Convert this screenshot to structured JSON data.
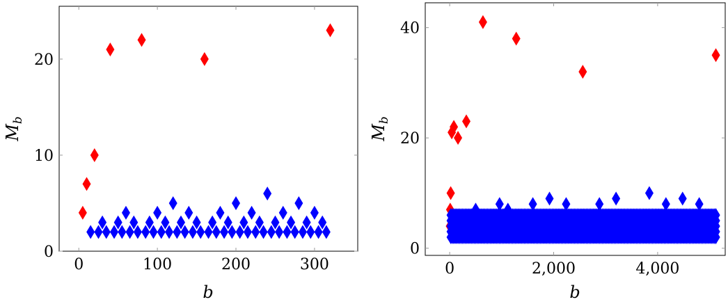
{
  "colors": {
    "highlight": "#ff0000",
    "regular": "#0000ff",
    "axis": "#000000",
    "tick": "#999999"
  },
  "chart_data": [
    {
      "type": "scatter",
      "title": "",
      "xlabel": "b",
      "ylabel": "M_b",
      "ylabel_main": "M",
      "ylabel_sub": "b",
      "xlim": [
        -25,
        355
      ],
      "ylim": [
        0,
        25.5
      ],
      "xticks": [
        0,
        100,
        200,
        300
      ],
      "xtick_labels": [
        "0",
        "100",
        "200",
        "300"
      ],
      "yticks": [
        0,
        10,
        20
      ],
      "ytick_labels": [
        "0",
        "10",
        "20"
      ],
      "grid": false,
      "marker": "diamond",
      "series": [
        {
          "color": "#ff0000",
          "points": [
            [
              5,
              4
            ],
            [
              10,
              7
            ],
            [
              20,
              10
            ],
            [
              40,
              21
            ],
            [
              80,
              22
            ],
            [
              160,
              20
            ],
            [
              320,
              23
            ]
          ]
        },
        {
          "color": "#0000ff",
          "points": [
            [
              15,
              2
            ],
            [
              25,
              2
            ],
            [
              30,
              3
            ],
            [
              35,
              2
            ],
            [
              45,
              2
            ],
            [
              50,
              3
            ],
            [
              55,
              2
            ],
            [
              60,
              4
            ],
            [
              65,
              2
            ],
            [
              70,
              3
            ],
            [
              75,
              2
            ],
            [
              85,
              2
            ],
            [
              90,
              3
            ],
            [
              95,
              2
            ],
            [
              100,
              4
            ],
            [
              105,
              2
            ],
            [
              110,
              3
            ],
            [
              115,
              2
            ],
            [
              120,
              5
            ],
            [
              125,
              2
            ],
            [
              130,
              3
            ],
            [
              135,
              2
            ],
            [
              140,
              4
            ],
            [
              145,
              2
            ],
            [
              150,
              3
            ],
            [
              155,
              2
            ],
            [
              165,
              2
            ],
            [
              170,
              3
            ],
            [
              175,
              2
            ],
            [
              180,
              4
            ],
            [
              185,
              2
            ],
            [
              190,
              3
            ],
            [
              195,
              2
            ],
            [
              200,
              5
            ],
            [
              205,
              2
            ],
            [
              210,
              3
            ],
            [
              215,
              2
            ],
            [
              220,
              4
            ],
            [
              225,
              2
            ],
            [
              230,
              3
            ],
            [
              235,
              2
            ],
            [
              240,
              6
            ],
            [
              245,
              2
            ],
            [
              250,
              3
            ],
            [
              255,
              2
            ],
            [
              260,
              4
            ],
            [
              265,
              2
            ],
            [
              270,
              3
            ],
            [
              275,
              2
            ],
            [
              280,
              5
            ],
            [
              285,
              2
            ],
            [
              290,
              3
            ],
            [
              295,
              2
            ],
            [
              300,
              4
            ],
            [
              305,
              2
            ],
            [
              310,
              3
            ],
            [
              315,
              2
            ]
          ]
        }
      ]
    },
    {
      "type": "scatter",
      "title": "",
      "xlabel": "b",
      "ylabel": "M_b",
      "ylabel_main": "M",
      "ylabel_sub": "b",
      "xlim": [
        -470,
        5300
      ],
      "ylim": [
        -1.3,
        44.5
      ],
      "xticks": [
        0,
        2000,
        4000
      ],
      "xtick_labels": [
        "0",
        "2,000",
        "4,000"
      ],
      "yticks": [
        0,
        20,
        40
      ],
      "ytick_labels": [
        "0",
        "20",
        "40"
      ],
      "grid": false,
      "marker": "diamond",
      "series": [
        {
          "color": "#ff0000",
          "points": [
            [
              5,
              4
            ],
            [
              10,
              7
            ],
            [
              20,
              10
            ],
            [
              40,
              21
            ],
            [
              80,
              22
            ],
            [
              160,
              20
            ],
            [
              320,
              23
            ],
            [
              640,
              41
            ],
            [
              1280,
              38
            ],
            [
              2560,
              32
            ],
            [
              5120,
              35
            ]
          ]
        },
        {
          "color": "#0000ff",
          "range_x": [
            20,
            5120
          ],
          "dense_levels": [
            2,
            3,
            4,
            5,
            6
          ],
          "points": [
            [
              500,
              7
            ],
            [
              960,
              8
            ],
            [
              1120,
              7
            ],
            [
              1600,
              8
            ],
            [
              1920,
              9
            ],
            [
              2240,
              8
            ],
            [
              2880,
              8
            ],
            [
              3200,
              9
            ],
            [
              3840,
              10
            ],
            [
              4160,
              8
            ],
            [
              4480,
              9
            ],
            [
              4800,
              8
            ]
          ]
        }
      ]
    }
  ]
}
